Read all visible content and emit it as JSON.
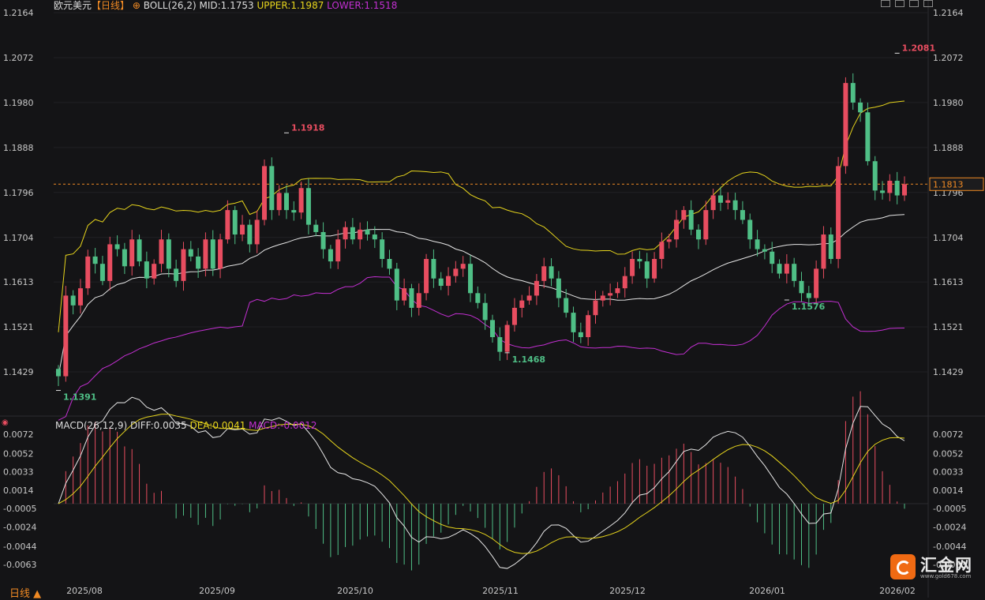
{
  "header": {
    "symbol": "欧元美元",
    "period_tag": "【日线】",
    "boll_label": "BOLL(26,2)",
    "mid": "MID:1.1753",
    "upper": "UPPER:1.1987",
    "lower": "LOWER:1.1518"
  },
  "macd_header": {
    "label": "MACD(26,12,9)",
    "diff": "DIFF:0.0035",
    "dea": "DEA:0.0041",
    "macd": "MACD:-0.0012"
  },
  "footer": {
    "period_button": "日线 ▲"
  },
  "logo": {
    "text": "汇金网",
    "url": "www.gold678.com"
  },
  "colors": {
    "background": "#141416",
    "up": "#e84d60",
    "down": "#4fbf86",
    "boll_mid": "#e6e6e6",
    "boll_upper": "#e6d41c",
    "boll_lower": "#c32fd2",
    "price_line": "#f08a24",
    "header_orange": "#f08a24"
  },
  "chart_data": [
    {
      "type": "candlestick",
      "title": "欧元美元 日线",
      "y_ticks": [
        1.2164,
        1.2072,
        1.198,
        1.1888,
        1.1796,
        1.1704,
        1.1613,
        1.1521,
        1.1429
      ],
      "x_tick_labels": [
        "2025/08",
        "2025/09",
        "2025/10",
        "2025/11",
        "2025/12",
        "2026/01",
        "2026/02"
      ],
      "current_price": 1.1813,
      "annotations": [
        {
          "text": "1.1391",
          "value": 1.1391,
          "kind": "low"
        },
        {
          "text": "1.1918",
          "value": 1.1918,
          "kind": "high"
        },
        {
          "text": "1.1468",
          "value": 1.1468,
          "kind": "low"
        },
        {
          "text": "1.1576",
          "value": 1.1576,
          "kind": "low"
        },
        {
          "text": "1.2081",
          "value": 1.2081,
          "kind": "high"
        }
      ],
      "close_path": [
        1.142,
        1.1585,
        1.1565,
        1.16,
        1.1665,
        1.165,
        1.1615,
        1.169,
        1.168,
        1.1645,
        1.17,
        1.1655,
        1.162,
        1.165,
        1.17,
        1.164,
        1.1615,
        1.168,
        1.1665,
        1.164,
        1.17,
        1.164,
        1.17,
        1.176,
        1.171,
        1.173,
        1.169,
        1.174,
        1.185,
        1.176,
        1.1795,
        1.176,
        1.1755,
        1.1805,
        1.173,
        1.1715,
        1.168,
        1.1655,
        1.17,
        1.1725,
        1.17,
        1.172,
        1.171,
        1.17,
        1.166,
        1.164,
        1.1575,
        1.16,
        1.156,
        1.159,
        1.166,
        1.162,
        1.1605,
        1.1625,
        1.164,
        1.165,
        1.159,
        1.157,
        1.1535,
        1.15,
        1.147,
        1.1525,
        1.156,
        1.1575,
        1.1585,
        1.1615,
        1.1645,
        1.162,
        1.158,
        1.155,
        1.151,
        1.15,
        1.1545,
        1.1575,
        1.1585,
        1.159,
        1.16,
        1.1625,
        1.166,
        1.1655,
        1.162,
        1.166,
        1.1695,
        1.17,
        1.174,
        1.176,
        1.172,
        1.17,
        1.176,
        1.179,
        1.1775,
        1.178,
        1.176,
        1.174,
        1.17,
        1.168,
        1.1675,
        1.165,
        1.163,
        1.165,
        1.1615,
        1.159,
        1.158,
        1.164,
        1.171,
        1.166,
        1.185,
        1.202,
        1.198,
        1.196,
        1.186,
        1.18,
        1.1795,
        1.182,
        1.179,
        1.1813
      ],
      "bollinger": {
        "mid": 1.1753,
        "upper": 1.1987,
        "lower": 1.1518
      }
    },
    {
      "type": "macd",
      "title": "MACD(26,12,9)",
      "y_ticks": [
        0.0072,
        0.0052,
        0.0033,
        0.0014,
        -0.0005,
        -0.0024,
        -0.0044,
        -0.0063
      ],
      "diff": 0.0035,
      "dea": 0.0041,
      "macd": -0.0012
    }
  ]
}
